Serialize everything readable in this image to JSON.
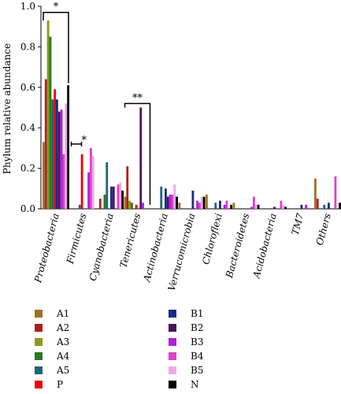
{
  "chart_data": {
    "type": "bar",
    "ylabel": "Phylum relative abundance",
    "ylim": [
      0,
      1.0
    ],
    "yticks": [
      "0.0",
      "0.2",
      "0.4",
      "0.6",
      "0.8",
      "1.0"
    ],
    "categories": [
      "Proteobacteria",
      "Firmicutes",
      "Cyanobacteria",
      "Tenericutes",
      "Actinobacteria",
      "Verrucomicrobia",
      "Chloroflexi",
      "Bacteroidetes",
      "Acidobacteria",
      "TM7",
      "Others"
    ],
    "series": [
      {
        "name": "A1",
        "color": "#a0722a",
        "values": [
          0.33,
          0.0,
          0.0,
          0.06,
          0.0,
          0.03,
          0.07,
          0.03,
          0.0,
          0.0,
          0.15
        ]
      },
      {
        "name": "A2",
        "color": "#b01e1e",
        "values": [
          0.64,
          0.0,
          0.05,
          0.21,
          0.0,
          0.0,
          0.0,
          0.0,
          0.0,
          0.0,
          0.05
        ]
      },
      {
        "name": "A3",
        "color": "#8a9a18",
        "values": [
          0.93,
          0.0,
          0.0,
          0.04,
          0.0,
          0.0,
          0.0,
          0.0,
          0.0,
          0.0,
          0.0
        ]
      },
      {
        "name": "A4",
        "color": "#2a7a22",
        "values": [
          0.85,
          0.0,
          0.07,
          0.03,
          0.0,
          0.0,
          0.0,
          0.0,
          0.0,
          0.0,
          0.0
        ]
      },
      {
        "name": "A5",
        "color": "#1e6672",
        "values": [
          0.54,
          0.02,
          0.23,
          0.0,
          0.11,
          0.0,
          0.03,
          0.0,
          0.0,
          0.0,
          0.02
        ]
      },
      {
        "name": "P",
        "color": "#f00000",
        "values": [
          0.59,
          0.27,
          0.0,
          0.02,
          0.0,
          0.0,
          0.0,
          0.0,
          0.0,
          0.0,
          0.0
        ]
      },
      {
        "name": "B1",
        "color": "#1a2a8c",
        "values": [
          0.54,
          0.0,
          0.11,
          0.0,
          0.1,
          0.09,
          0.04,
          0.0,
          0.01,
          0.02,
          0.03
        ]
      },
      {
        "name": "B2",
        "color": "#4a1460",
        "values": [
          0.48,
          0.0,
          0.11,
          0.5,
          0.06,
          0.0,
          0.0,
          0.0,
          0.0,
          0.0,
          0.0
        ]
      },
      {
        "name": "B3",
        "color": "#b020e0",
        "values": [
          0.49,
          0.18,
          0.0,
          0.03,
          0.07,
          0.04,
          0.02,
          0.01,
          0.0,
          0.02,
          0.0
        ]
      },
      {
        "name": "B4",
        "color": "#e040c8",
        "values": [
          0.27,
          0.3,
          0.12,
          0.0,
          0.07,
          0.03,
          0.04,
          0.06,
          0.04,
          0.0,
          0.16
        ]
      },
      {
        "name": "B5",
        "color": "#f0a8e6",
        "values": [
          0.52,
          0.26,
          0.13,
          0.0,
          0.12,
          0.06,
          0.0,
          0.02,
          0.02,
          0.0,
          0.0
        ]
      },
      {
        "name": "N",
        "color": "#000000",
        "values": [
          0.61,
          0.0,
          0.09,
          0.0,
          0.06,
          0.06,
          0.02,
          0.02,
          0.01,
          0.0,
          0.03
        ]
      }
    ],
    "significance": [
      {
        "label": "*",
        "category": "Proteobacteria",
        "top": 0.97
      },
      {
        "label": "*",
        "category": "Firmicutes",
        "top": 0.32
      },
      {
        "label": "**",
        "category": "Tenericutes",
        "top": 0.52
      }
    ],
    "legend_position": "bottom"
  }
}
